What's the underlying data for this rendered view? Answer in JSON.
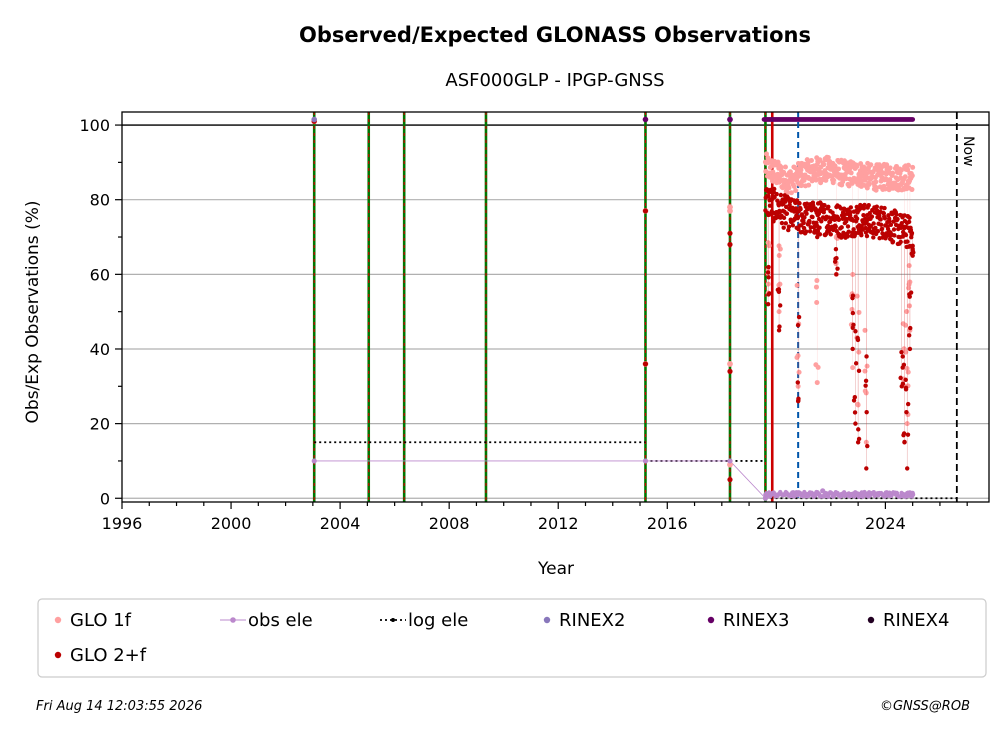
{
  "chart_data": {
    "type": "scatter",
    "title": "Observed/Expected GLONASS Observations",
    "subtitle": "ASF000GLP - IPGP-GNSS",
    "xlabel": "Year",
    "ylabel": "Obs/Exp Observations (%)",
    "xlim": [
      1996,
      2027.8
    ],
    "ylim": [
      -1,
      103.5
    ],
    "xticks": [
      1996,
      2000,
      2004,
      2008,
      2012,
      2016,
      2020,
      2024
    ],
    "yticks": [
      0,
      20,
      40,
      60,
      80,
      100
    ],
    "grid": "horizontal",
    "reference_line_y": 100,
    "now_label": "Now",
    "now_x": 2026.62,
    "legend_position": "bottom",
    "colors": {
      "glo1f": "#ffa0a0",
      "glo2f": "#bb0000",
      "obs_ele": "#bb88cc",
      "log_ele": "#000000",
      "rinex2": "#8877bb",
      "rinex3": "#660066",
      "rinex4": "#220022",
      "event_green": "#007700",
      "event_red": "#cc0000",
      "event_blue": "#0055aa"
    },
    "legend": [
      {
        "key": "glo1f",
        "label": "GLO 1f"
      },
      {
        "key": "obs_ele",
        "label": "obs ele"
      },
      {
        "key": "log_ele",
        "label": "log ele"
      },
      {
        "key": "rinex2",
        "label": "RINEX2"
      },
      {
        "key": "rinex3",
        "label": "RINEX3"
      },
      {
        "key": "rinex4",
        "label": "RINEX4"
      },
      {
        "key": "glo2f",
        "label": "GLO 2+f"
      }
    ],
    "event_lines": [
      {
        "x": 2003.05,
        "style": "green-red"
      },
      {
        "x": 2005.05,
        "style": "green-red"
      },
      {
        "x": 2006.35,
        "style": "green-red"
      },
      {
        "x": 2009.35,
        "style": "green-red"
      },
      {
        "x": 2015.2,
        "style": "green-red"
      },
      {
        "x": 2018.3,
        "style": "green-red"
      },
      {
        "x": 2019.6,
        "style": "green-red"
      },
      {
        "x": 2019.85,
        "style": "red"
      },
      {
        "x": 2020.8,
        "style": "blue-dashed"
      }
    ],
    "log_ele_segments": [
      {
        "x": [
          2003.05,
          2015.2
        ],
        "y": 15
      },
      {
        "x": [
          2015.2,
          2019.6
        ],
        "y": 10
      },
      {
        "x": [
          2019.6,
          2026.62
        ],
        "y": 0
      }
    ],
    "series": [
      {
        "name": "GLO 1f",
        "key": "glo1f",
        "points": [
          [
            2003.05,
            101
          ],
          [
            2015.2,
            77
          ],
          [
            2015.2,
            36
          ],
          [
            2018.3,
            78
          ],
          [
            2018.3,
            77
          ],
          [
            2018.3,
            36
          ],
          [
            2018.3,
            9
          ]
        ],
        "band": [
          [
            2019.6,
            89
          ],
          [
            2020.0,
            87
          ],
          [
            2020.5,
            85
          ],
          [
            2021.0,
            87
          ],
          [
            2021.5,
            88
          ],
          [
            2022.0,
            88
          ],
          [
            2022.5,
            87
          ],
          [
            2023.0,
            87
          ],
          [
            2023.5,
            86
          ],
          [
            2024.0,
            86
          ],
          [
            2024.5,
            86
          ],
          [
            2025.0,
            86
          ]
        ],
        "dips": [
          [
            2019.7,
            55
          ],
          [
            2020.1,
            50
          ],
          [
            2020.8,
            30
          ],
          [
            2021.5,
            31
          ],
          [
            2022.2,
            60
          ],
          [
            2022.8,
            35
          ],
          [
            2023.0,
            25
          ],
          [
            2023.3,
            15
          ],
          [
            2024.7,
            30
          ],
          [
            2024.8,
            20
          ],
          [
            2024.9,
            45
          ]
        ]
      },
      {
        "name": "GLO 2+f",
        "key": "glo2f",
        "points": [
          [
            2003.05,
            101
          ],
          [
            2015.2,
            77
          ],
          [
            2015.2,
            36
          ],
          [
            2018.3,
            71
          ],
          [
            2018.3,
            68
          ],
          [
            2018.3,
            34
          ],
          [
            2018.3,
            5
          ]
        ],
        "band": [
          [
            2019.6,
            80
          ],
          [
            2020.0,
            78
          ],
          [
            2020.5,
            76
          ],
          [
            2021.0,
            75
          ],
          [
            2021.5,
            75
          ],
          [
            2022.0,
            75
          ],
          [
            2022.5,
            74
          ],
          [
            2023.0,
            75
          ],
          [
            2023.5,
            74
          ],
          [
            2024.0,
            74
          ],
          [
            2024.5,
            72
          ],
          [
            2025.0,
            71
          ]
        ],
        "dips": [
          [
            2019.7,
            52
          ],
          [
            2020.1,
            45
          ],
          [
            2020.8,
            26
          ],
          [
            2021.5,
            70
          ],
          [
            2022.2,
            60
          ],
          [
            2022.8,
            40
          ],
          [
            2022.9,
            20
          ],
          [
            2023.0,
            15
          ],
          [
            2023.3,
            8
          ],
          [
            2024.6,
            30
          ],
          [
            2024.7,
            15
          ],
          [
            2024.8,
            8
          ],
          [
            2024.9,
            40
          ],
          [
            2025.0,
            65
          ]
        ]
      },
      {
        "name": "obs ele",
        "key": "obs_ele",
        "points": [
          [
            2003.05,
            10
          ],
          [
            2015.2,
            10
          ],
          [
            2018.3,
            10
          ],
          [
            2019.6,
            0
          ],
          [
            2021.7,
            2
          ],
          [
            2025.0,
            1
          ]
        ]
      },
      {
        "name": "RINEX2",
        "key": "rinex2",
        "points": [
          [
            2003.05,
            101.5
          ],
          [
            2018.3,
            101.5
          ]
        ]
      },
      {
        "name": "RINEX3",
        "key": "rinex3",
        "points": [
          [
            2015.2,
            101.5
          ],
          [
            2018.3,
            101.5
          ]
        ],
        "range": [
          2019.55,
          2025.0,
          101.5
        ]
      },
      {
        "name": "RINEX4",
        "key": "rinex4",
        "points": []
      }
    ]
  },
  "footer": {
    "timestamp": "Fri Aug 14 12:03:55 2026",
    "credit": "©GNSS@ROB"
  }
}
